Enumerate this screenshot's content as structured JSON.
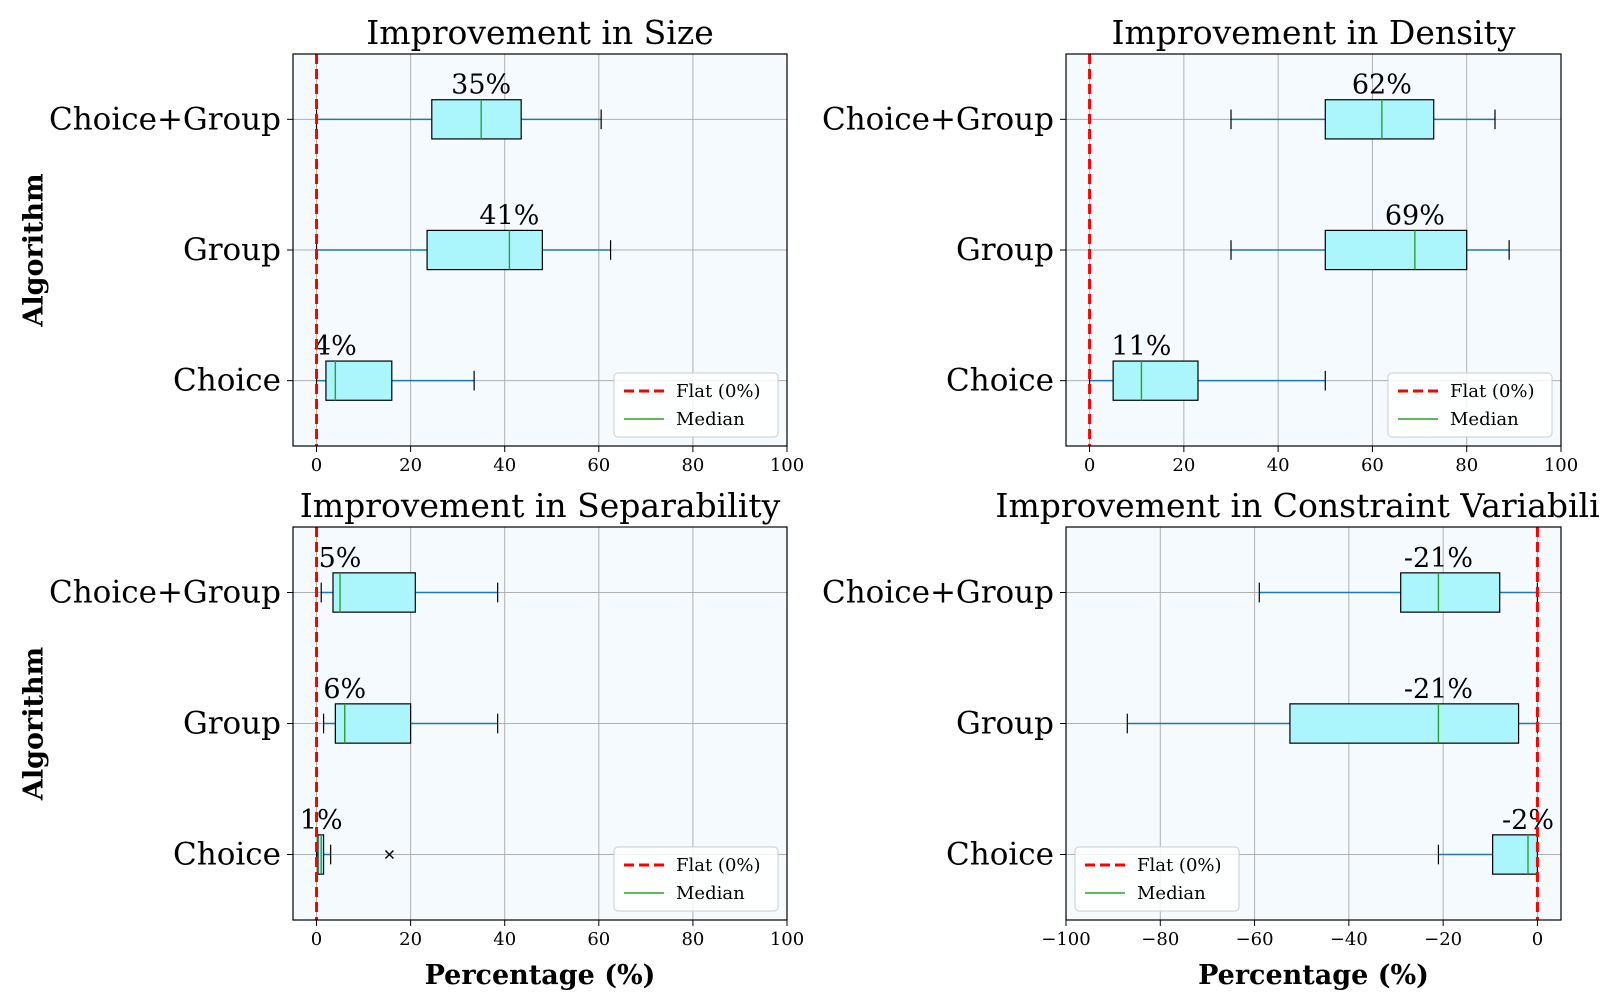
{
  "chart_data": [
    {
      "type": "box",
      "title": "Improvement in Size",
      "ylabel": "Algorithm",
      "xlabel": "",
      "xlim": [
        -5,
        100
      ],
      "xticks": [
        0,
        20,
        40,
        60,
        80,
        100
      ],
      "xtick_labels": [
        "0",
        "20",
        "40",
        "60",
        "80",
        "100"
      ],
      "grid": true,
      "legend_placement": "bottom-right",
      "categories": [
        "Choice+Group",
        "Group",
        "Choice"
      ],
      "boxes": [
        {
          "whisker_low": 0,
          "q1": 24.5,
          "median": 35,
          "q3": 43.5,
          "whisker_high": 60.5,
          "outliers": [],
          "label": "35%"
        },
        {
          "whisker_low": 0,
          "q1": 23.5,
          "median": 41,
          "q3": 48,
          "whisker_high": 62.5,
          "outliers": [],
          "label": "41%"
        },
        {
          "whisker_low": 0,
          "q1": 2,
          "median": 4,
          "q3": 16,
          "whisker_high": 33.5,
          "outliers": [],
          "label": "4%"
        }
      ],
      "reference_line": 0
    },
    {
      "type": "box",
      "title": "Improvement in Density",
      "ylabel": "",
      "xlabel": "",
      "xlim": [
        -5,
        100
      ],
      "xticks": [
        0,
        20,
        40,
        60,
        80,
        100
      ],
      "xtick_labels": [
        "0",
        "20",
        "40",
        "60",
        "80",
        "100"
      ],
      "grid": true,
      "legend_placement": "bottom-right",
      "categories": [
        "Choice+Group",
        "Group",
        "Choice"
      ],
      "boxes": [
        {
          "whisker_low": 30,
          "q1": 50,
          "median": 62,
          "q3": 73,
          "whisker_high": 86,
          "outliers": [],
          "label": "62%"
        },
        {
          "whisker_low": 30,
          "q1": 50,
          "median": 69,
          "q3": 80,
          "whisker_high": 89,
          "outliers": [],
          "label": "69%"
        },
        {
          "whisker_low": 0,
          "q1": 5,
          "median": 11,
          "q3": 23,
          "whisker_high": 50,
          "outliers": [],
          "label": "11%"
        }
      ],
      "reference_line": 0
    },
    {
      "type": "box",
      "title": "Improvement in Separability",
      "ylabel": "Algorithm",
      "xlabel": "Percentage (%)",
      "xlim": [
        -5,
        100
      ],
      "xticks": [
        0,
        20,
        40,
        60,
        80,
        100
      ],
      "xtick_labels": [
        "0",
        "20",
        "40",
        "60",
        "80",
        "100"
      ],
      "grid": true,
      "legend_placement": "bottom-right",
      "categories": [
        "Choice+Group",
        "Group",
        "Choice"
      ],
      "boxes": [
        {
          "whisker_low": 1,
          "q1": 3.5,
          "median": 5,
          "q3": 21,
          "whisker_high": 38.5,
          "outliers": [],
          "label": "5%"
        },
        {
          "whisker_low": 1.5,
          "q1": 4,
          "median": 6,
          "q3": 20,
          "whisker_high": 38.5,
          "outliers": [],
          "label": "6%"
        },
        {
          "whisker_low": 0,
          "q1": 0.3,
          "median": 1,
          "q3": 1.5,
          "whisker_high": 3,
          "outliers": [
            15.5
          ],
          "label": "1%"
        }
      ],
      "reference_line": 0
    },
    {
      "type": "box",
      "title": "Improvement in Constraint Variability",
      "ylabel": "",
      "xlabel": "Percentage (%)",
      "xlim": [
        -100,
        5
      ],
      "xticks": [
        -100,
        -80,
        -60,
        -40,
        -20,
        0
      ],
      "xtick_labels": [
        "−100",
        "−80",
        "−60",
        "−40",
        "−20",
        "0"
      ],
      "grid": true,
      "legend_placement": "bottom-left",
      "categories": [
        "Choice+Group",
        "Group",
        "Choice"
      ],
      "boxes": [
        {
          "whisker_low": -59,
          "q1": -29,
          "median": -21,
          "q3": -8,
          "whisker_high": 0,
          "outliers": [],
          "label": "-21%"
        },
        {
          "whisker_low": -87,
          "q1": -52.5,
          "median": -21,
          "q3": -4,
          "whisker_high": 0,
          "outliers": [],
          "label": "-21%"
        },
        {
          "whisker_low": -21,
          "q1": -9.5,
          "median": -2,
          "q3": 0,
          "whisker_high": 0,
          "outliers": [],
          "label": "-2%"
        }
      ],
      "reference_line": 0
    }
  ],
  "legend": {
    "entries": [
      "Flat (0%)",
      "Median"
    ]
  },
  "colors": {
    "box_fill": "#aaf6fc",
    "axes_bg": "#f4fafe",
    "whisker": "#1f77b4",
    "median": "#2ca02c",
    "reference": "#ff0000",
    "grid": "#b0b0b0"
  }
}
